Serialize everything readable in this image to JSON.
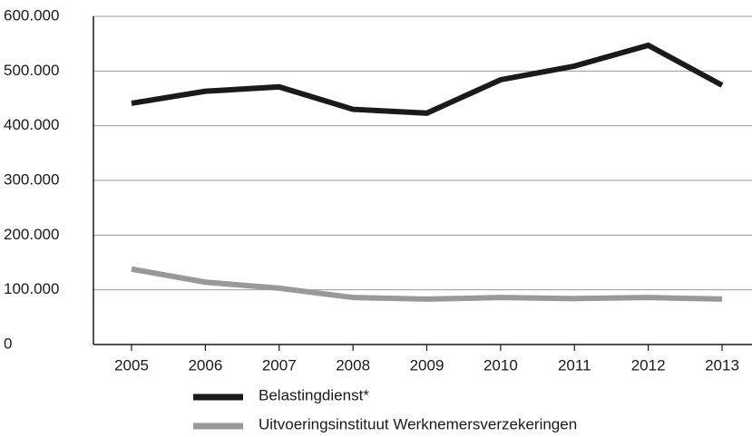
{
  "chart_data": {
    "type": "line",
    "categories": [
      "2005",
      "2006",
      "2007",
      "2008",
      "2009",
      "2010",
      "2011",
      "2012",
      "2013"
    ],
    "series": [
      {
        "name": "Belastingdienst*",
        "color": "#1a1a1a",
        "values": [
          441000,
          463000,
          471000,
          430000,
          423000,
          484000,
          509000,
          547000,
          474000
        ]
      },
      {
        "name": "Uitvoeringsinstituut Werknemersverzekeringen",
        "color": "#999999",
        "values": [
          138000,
          114000,
          103000,
          86000,
          83000,
          86000,
          84000,
          86000,
          83000
        ]
      }
    ],
    "ylim": [
      0,
      600000
    ],
    "yticks": [
      0,
      {
        "value": 100000,
        "label": "100.000"
      },
      {
        "value": 200000,
        "label": "200.000"
      },
      {
        "value": 300000,
        "label": "300.000"
      },
      {
        "value": 400000,
        "label": "400.000"
      },
      {
        "value": 500000,
        "label": "500.000"
      },
      {
        "value": 600000,
        "label": "600.000"
      }
    ],
    "grid": true,
    "legend": "bottom"
  }
}
